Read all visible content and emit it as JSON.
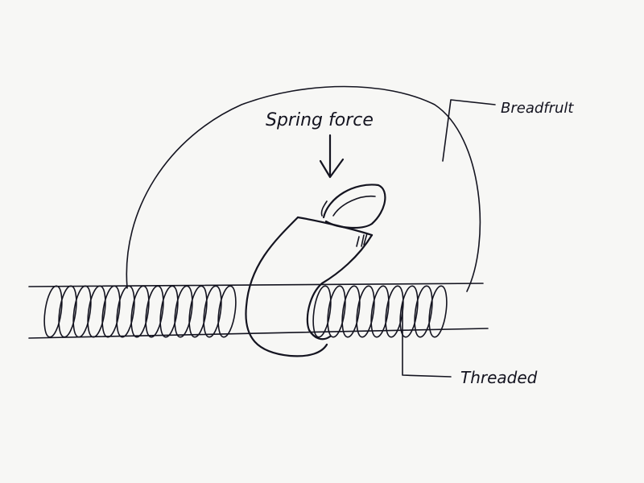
{
  "labels": {
    "spring_force": "Spring force",
    "breadfruit": "Breadfrult",
    "threaded": "Threaded"
  },
  "colors": {
    "ink": "#141420",
    "paper": "#f7f7f5"
  }
}
